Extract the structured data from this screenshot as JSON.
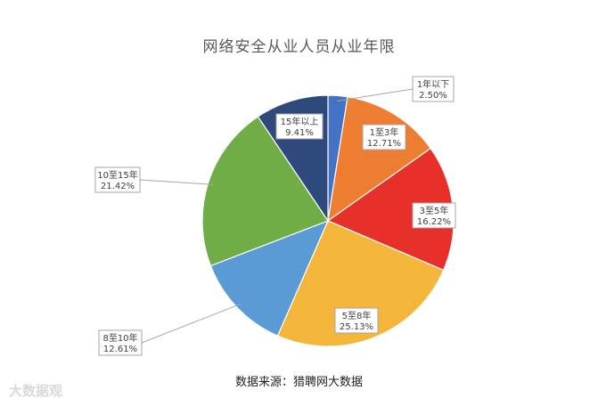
{
  "title": "网络安全从业人员从业年限",
  "source": "数据来源：猎聘网大数据",
  "watermark": "大数据观",
  "chart_data": {
    "type": "pie",
    "title": "网络安全从业人员从业年限",
    "slices": [
      {
        "label": "1年以下",
        "value": 2.5,
        "display": "2.50%",
        "color": "#4472c4"
      },
      {
        "label": "1至3年",
        "value": 12.71,
        "display": "12.71%",
        "color": "#ed7d31"
      },
      {
        "label": "3至5年",
        "value": 16.22,
        "display": "16.22%",
        "color": "#e8302b"
      },
      {
        "label": "5至8年",
        "value": 25.13,
        "display": "25.13%",
        "color": "#f4b63a"
      },
      {
        "label": "8至10年",
        "value": 12.61,
        "display": "12.61%",
        "color": "#5b9bd5"
      },
      {
        "label": "10至15年",
        "value": 21.42,
        "display": "21.42%",
        "color": "#70ad47"
      },
      {
        "label": "15年以上",
        "value": 9.41,
        "display": "9.41%",
        "color": "#2e4a7d"
      }
    ],
    "start_angle": "12 o'clock",
    "direction": "clockwise",
    "legend": "none"
  }
}
